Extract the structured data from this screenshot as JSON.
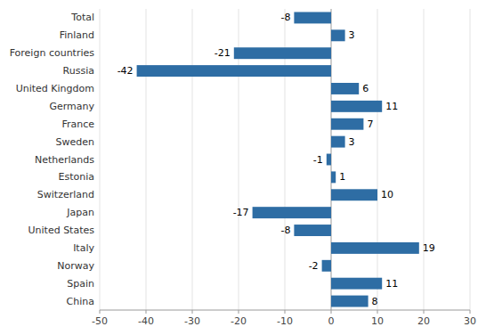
{
  "chart_data": {
    "type": "bar",
    "orientation": "horizontal",
    "categories": [
      "Total",
      "Finland",
      "Foreign countries",
      "Russia",
      "United Kingdom",
      "Germany",
      "France",
      "Sweden",
      "Netherlands",
      "Estonia",
      "Switzerland",
      "Japan",
      "United States",
      "Italy",
      "Norway",
      "Spain",
      "China"
    ],
    "values": [
      -8,
      3,
      -21,
      -42,
      6,
      11,
      7,
      3,
      -1,
      1,
      10,
      -17,
      -8,
      19,
      -2,
      11,
      8
    ],
    "color": "#2E6DA4",
    "xlim": [
      -50,
      30
    ],
    "xticks": [
      -50,
      -40,
      -30,
      -20,
      -10,
      0,
      10,
      20,
      30
    ],
    "grid": true,
    "data_labels": true
  }
}
